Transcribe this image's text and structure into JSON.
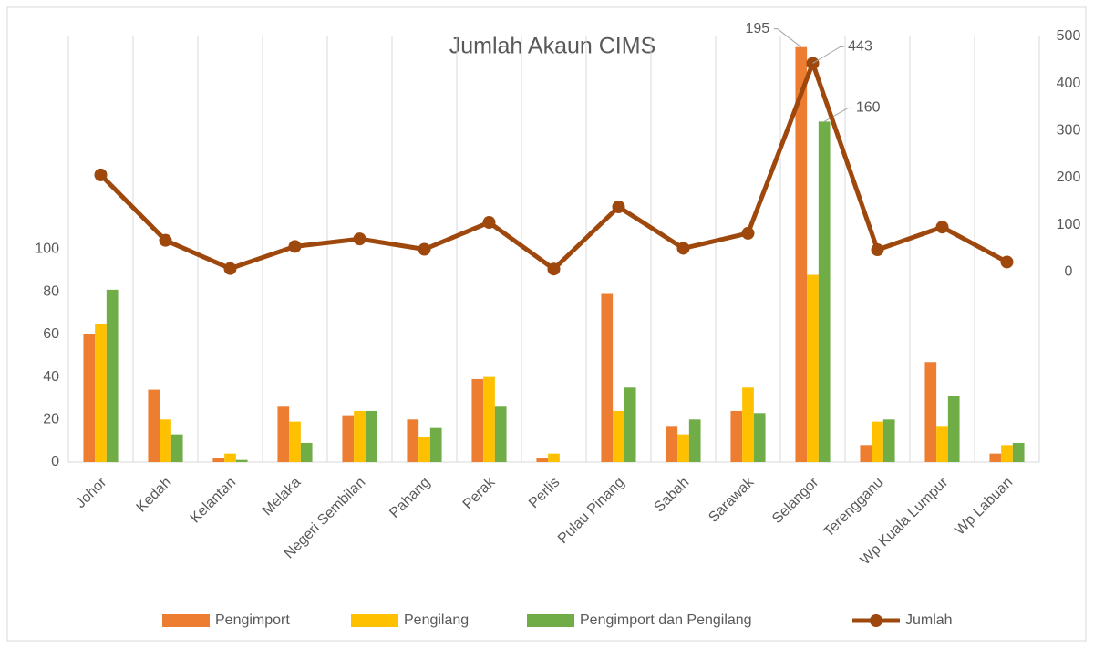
{
  "chart_data": {
    "type": "bar",
    "title": "Jumlah Akaun CIMS",
    "categories": [
      "Johor",
      "Kedah",
      "Kelantan",
      "Melaka",
      "Negeri Sembilan",
      "Pahang",
      "Perak",
      "Perlis",
      "Pulau Pinang",
      "Sabah",
      "Sarawak",
      "Selangor",
      "Terengganu",
      "Wp Kuala Lumpur",
      "Wp Labuan"
    ],
    "series": [
      {
        "name": "Pengimport",
        "type": "bar",
        "color": "#ED7D31",
        "values": [
          60,
          34,
          2,
          26,
          22,
          20,
          39,
          2,
          79,
          17,
          24,
          195,
          8,
          47,
          4
        ],
        "show_label": [
          11
        ]
      },
      {
        "name": "Pengilang",
        "type": "bar",
        "color": "#FFC000",
        "values": [
          65,
          20,
          4,
          19,
          24,
          12,
          40,
          4,
          24,
          13,
          35,
          88,
          19,
          17,
          8
        ],
        "show_label": []
      },
      {
        "name": "Pengimport dan Pengilang",
        "type": "bar",
        "color": "#70AD47",
        "values": [
          81,
          13,
          1,
          9,
          24,
          16,
          26,
          0,
          35,
          20,
          23,
          160,
          20,
          31,
          9
        ],
        "show_label": [
          11
        ]
      },
      {
        "name": "Jumlah",
        "type": "line",
        "axis": "y2",
        "color": "#9E480E",
        "values": [
          206,
          67,
          7,
          54,
          70,
          48,
          105,
          6,
          138,
          50,
          82,
          443,
          47,
          95,
          21
        ],
        "show_label": [
          11
        ]
      }
    ],
    "ylim": [
      0,
      200
    ],
    "yticks": [
      0,
      20,
      40,
      60,
      80,
      100
    ],
    "y2lim": [
      -404,
      500
    ],
    "y2ticks": [
      0,
      100,
      200,
      300,
      400,
      500
    ],
    "grid": "x",
    "legend": "bottom"
  }
}
